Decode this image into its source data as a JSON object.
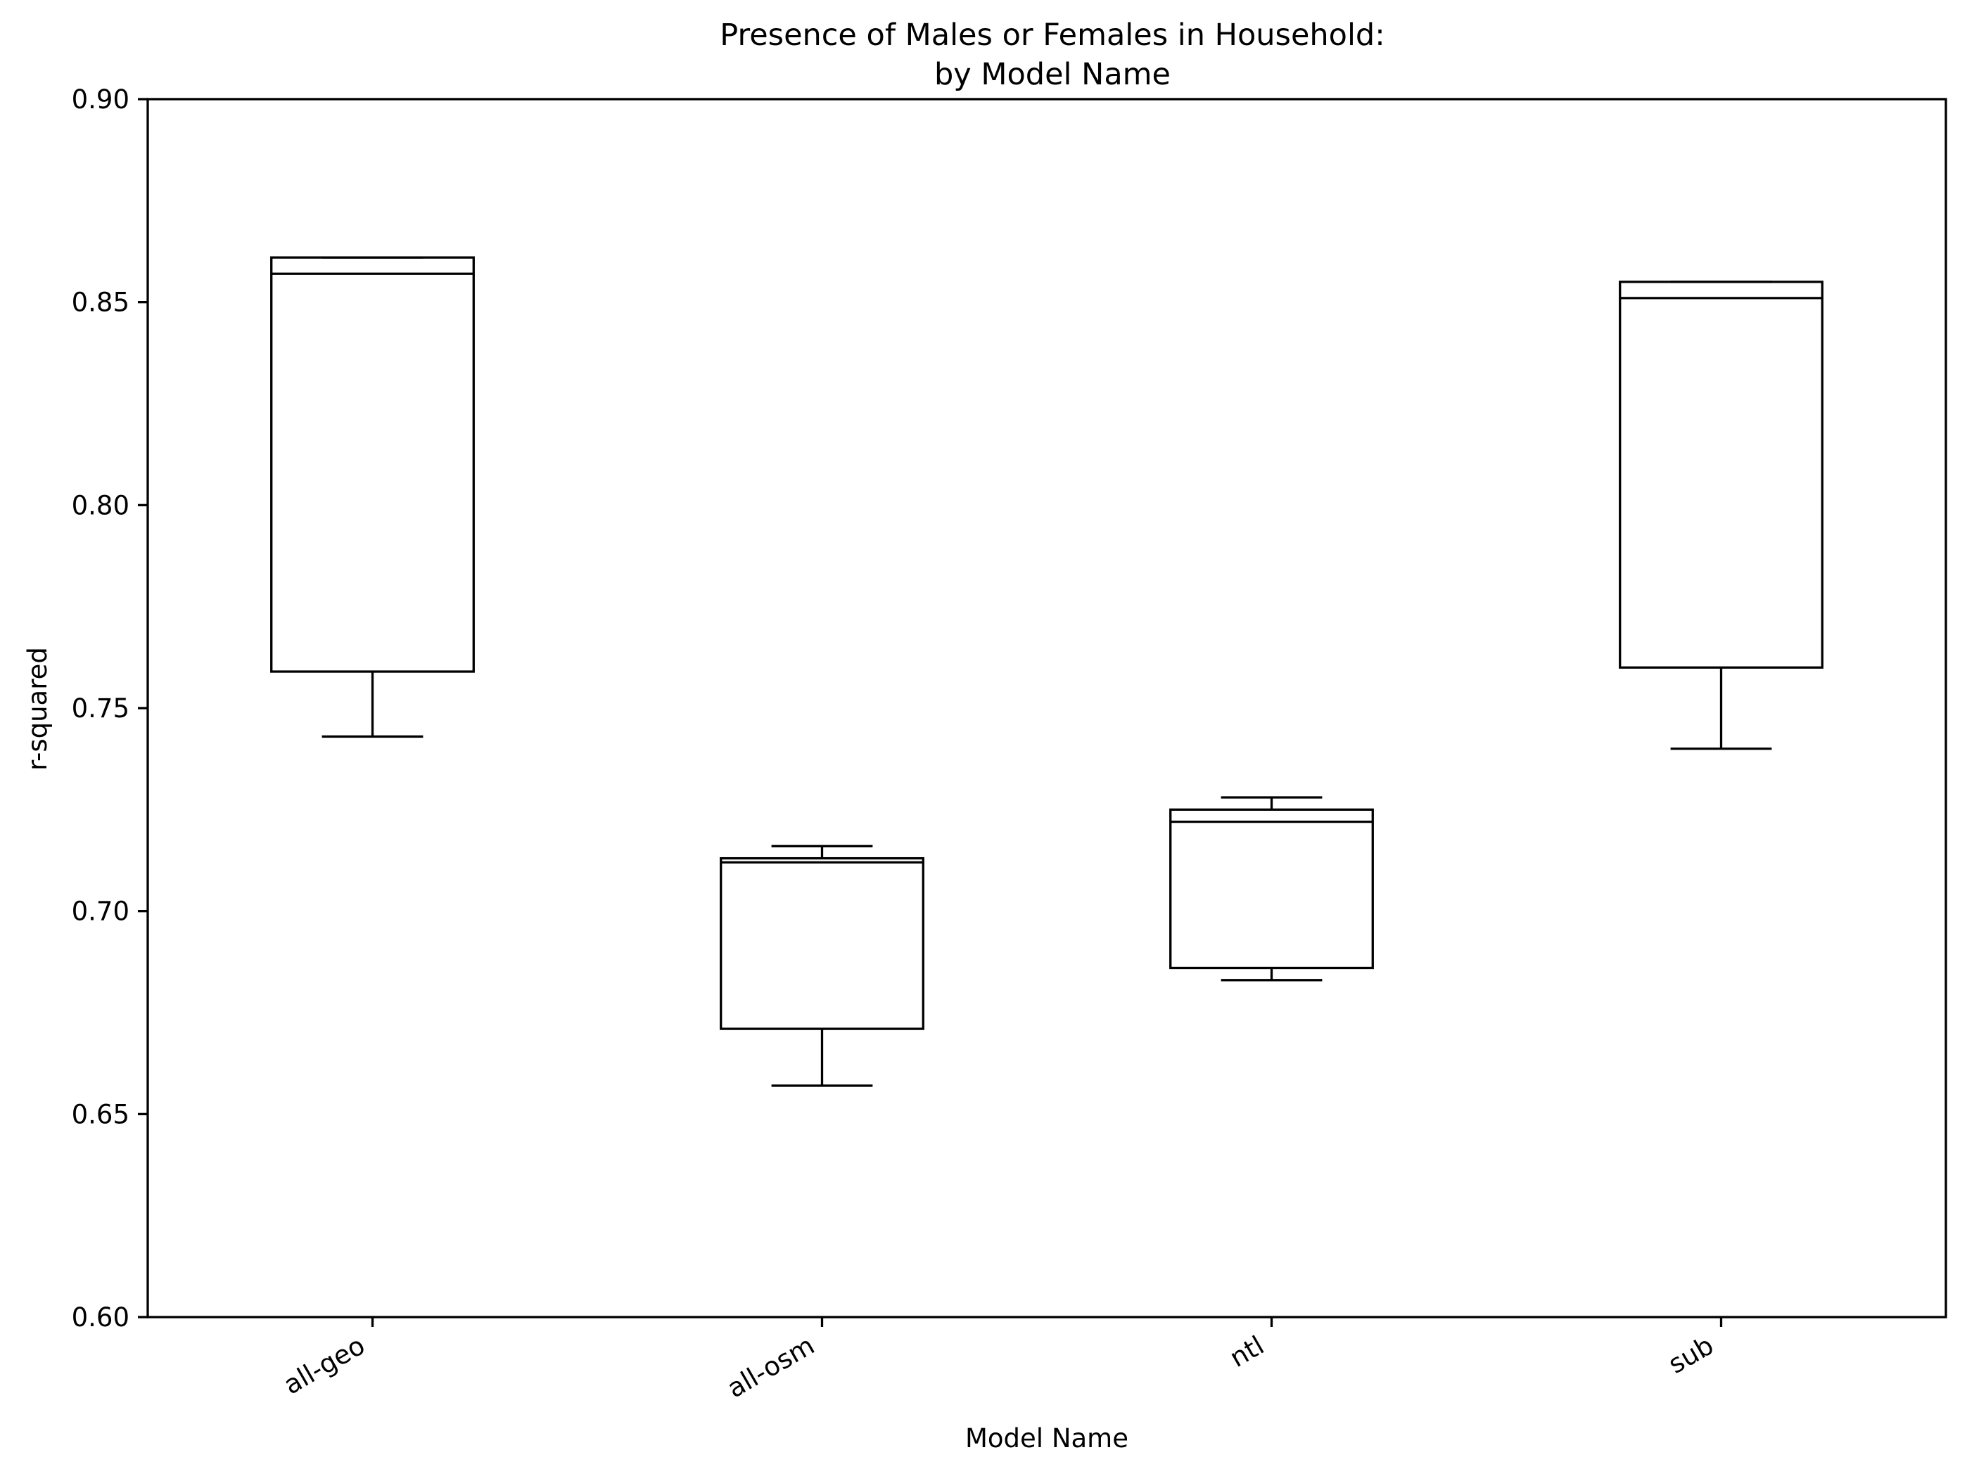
{
  "chart_data": {
    "type": "boxplot",
    "title_lines": [
      "Presence of Males or Females in Household:",
      "by Model Name"
    ],
    "xlabel": "Model Name",
    "ylabel": "r-squared",
    "ylim": [
      0.6,
      0.9
    ],
    "yticks": [
      0.6,
      0.65,
      0.7,
      0.75,
      0.8,
      0.85,
      0.9
    ],
    "ytick_labels": [
      "0.60",
      "0.65",
      "0.70",
      "0.75",
      "0.80",
      "0.85",
      "0.90"
    ],
    "categories": [
      "all-geo",
      "all-osm",
      "ntl",
      "sub"
    ],
    "boxes": [
      {
        "category": "all-geo",
        "whislo": 0.743,
        "q1": 0.759,
        "med": 0.857,
        "q3": 0.861,
        "whishi": 0.861
      },
      {
        "category": "all-osm",
        "whislo": 0.657,
        "q1": 0.671,
        "med": 0.712,
        "q3": 0.713,
        "whishi": 0.716
      },
      {
        "category": "ntl",
        "whislo": 0.683,
        "q1": 0.686,
        "med": 0.722,
        "q3": 0.725,
        "whishi": 0.728
      },
      {
        "category": "sub",
        "whislo": 0.74,
        "q1": 0.76,
        "med": 0.851,
        "q3": 0.855,
        "whishi": 0.855
      }
    ],
    "grid": false,
    "legend": "none",
    "colors": {
      "line": "#000000",
      "background": "#ffffff"
    }
  }
}
